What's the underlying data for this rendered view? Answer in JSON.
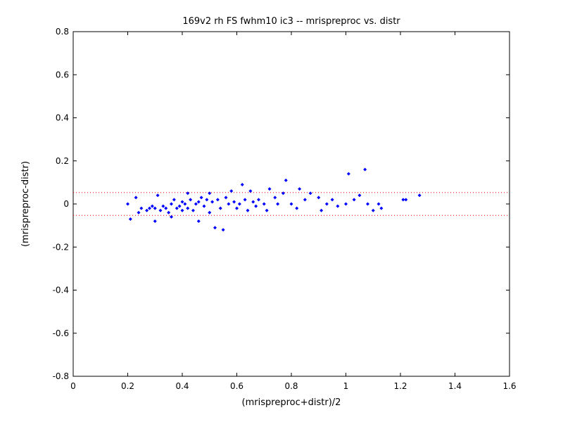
{
  "chart_data": {
    "type": "scatter",
    "title": "169v2 rh FS fwhm10 ic3 -- mrispreproc vs. distr",
    "xlabel": "(mrispreproc+distr)/2",
    "ylabel": "(mrispreproc-distr)",
    "xlim": [
      0,
      1.6
    ],
    "ylim": [
      -0.8,
      0.8
    ],
    "xticks": [
      "0",
      "0.2",
      "0.4",
      "0.6",
      "0.8",
      "1",
      "1.2",
      "1.4",
      "1.6"
    ],
    "yticks": [
      "-0.8",
      "-0.6",
      "-0.4",
      "-0.2",
      "0",
      "0.2",
      "0.4",
      "0.6",
      "0.8"
    ],
    "grid": false,
    "marker_color": "#0000ff",
    "reference_line_color": "#ff0000",
    "reference_lines_y": [
      0.053,
      -0.053
    ],
    "points": [
      [
        0.2,
        0.0
      ],
      [
        0.21,
        -0.07
      ],
      [
        0.23,
        0.03
      ],
      [
        0.24,
        -0.04
      ],
      [
        0.25,
        -0.02
      ],
      [
        0.27,
        -0.03
      ],
      [
        0.28,
        -0.02
      ],
      [
        0.29,
        -0.01
      ],
      [
        0.3,
        -0.02
      ],
      [
        0.3,
        -0.08
      ],
      [
        0.31,
        0.04
      ],
      [
        0.32,
        -0.03
      ],
      [
        0.33,
        -0.01
      ],
      [
        0.34,
        -0.02
      ],
      [
        0.35,
        -0.04
      ],
      [
        0.36,
        0.0
      ],
      [
        0.36,
        -0.06
      ],
      [
        0.37,
        0.02
      ],
      [
        0.38,
        -0.02
      ],
      [
        0.39,
        -0.01
      ],
      [
        0.4,
        0.01
      ],
      [
        0.4,
        -0.03
      ],
      [
        0.41,
        0.0
      ],
      [
        0.42,
        -0.02
      ],
      [
        0.42,
        0.05
      ],
      [
        0.43,
        0.02
      ],
      [
        0.44,
        -0.03
      ],
      [
        0.45,
        0.0
      ],
      [
        0.46,
        0.01
      ],
      [
        0.46,
        -0.08
      ],
      [
        0.47,
        0.03
      ],
      [
        0.48,
        -0.01
      ],
      [
        0.49,
        0.02
      ],
      [
        0.5,
        0.05
      ],
      [
        0.5,
        -0.04
      ],
      [
        0.51,
        0.01
      ],
      [
        0.52,
        -0.11
      ],
      [
        0.53,
        0.02
      ],
      [
        0.54,
        -0.02
      ],
      [
        0.55,
        -0.12
      ],
      [
        0.56,
        0.03
      ],
      [
        0.57,
        0.0
      ],
      [
        0.58,
        0.06
      ],
      [
        0.59,
        0.01
      ],
      [
        0.6,
        -0.02
      ],
      [
        0.61,
        0.0
      ],
      [
        0.62,
        0.09
      ],
      [
        0.63,
        0.02
      ],
      [
        0.64,
        -0.03
      ],
      [
        0.65,
        0.06
      ],
      [
        0.66,
        0.01
      ],
      [
        0.67,
        -0.01
      ],
      [
        0.68,
        0.02
      ],
      [
        0.7,
        0.0
      ],
      [
        0.71,
        -0.03
      ],
      [
        0.72,
        0.07
      ],
      [
        0.74,
        0.03
      ],
      [
        0.75,
        0.0
      ],
      [
        0.77,
        0.05
      ],
      [
        0.78,
        0.11
      ],
      [
        0.8,
        0.0
      ],
      [
        0.82,
        -0.02
      ],
      [
        0.83,
        0.07
      ],
      [
        0.85,
        0.02
      ],
      [
        0.87,
        0.05
      ],
      [
        0.9,
        0.03
      ],
      [
        0.91,
        -0.03
      ],
      [
        0.93,
        0.0
      ],
      [
        0.95,
        0.02
      ],
      [
        0.97,
        -0.01
      ],
      [
        1.0,
        0.0
      ],
      [
        1.01,
        0.14
      ],
      [
        1.03,
        0.02
      ],
      [
        1.05,
        0.04
      ],
      [
        1.07,
        0.16
      ],
      [
        1.08,
        0.0
      ],
      [
        1.1,
        -0.03
      ],
      [
        1.12,
        0.0
      ],
      [
        1.13,
        -0.02
      ],
      [
        1.21,
        0.02
      ],
      [
        1.22,
        0.02
      ],
      [
        1.27,
        0.04
      ]
    ]
  }
}
